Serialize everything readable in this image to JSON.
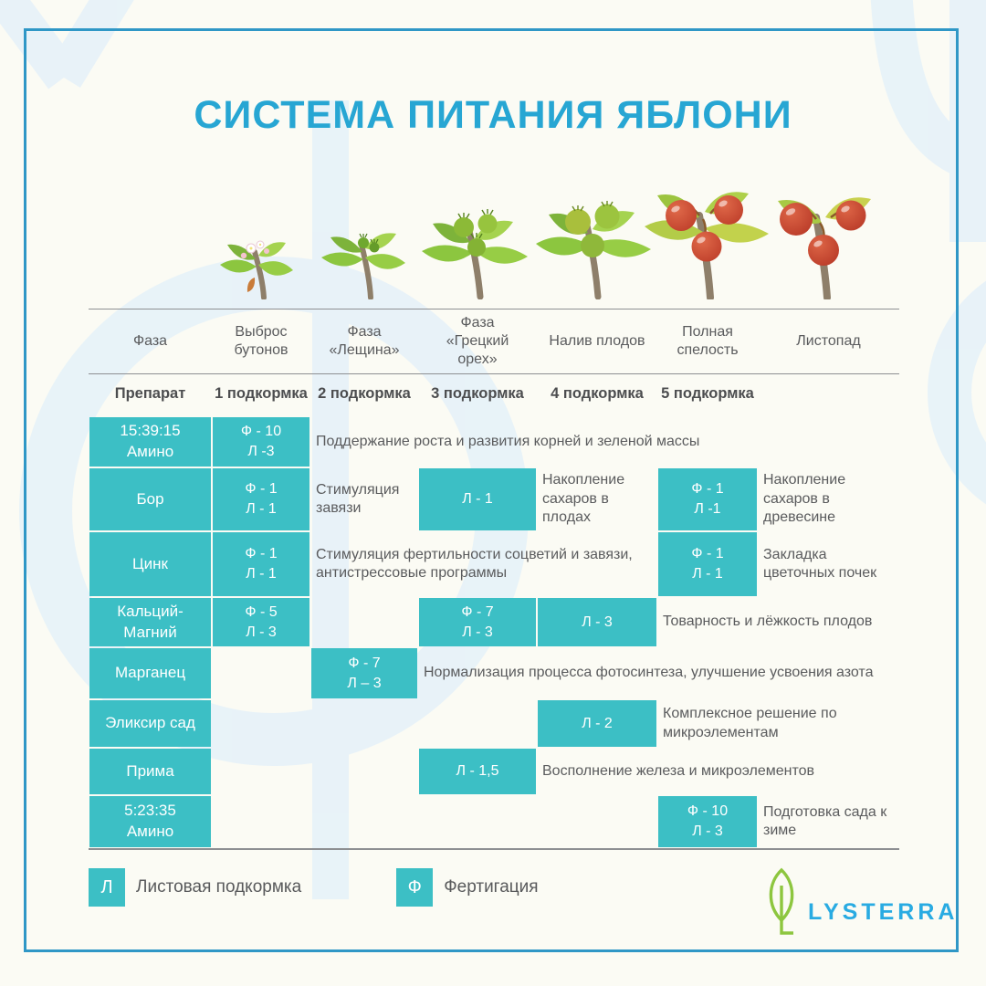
{
  "title": "СИСТЕМА ПИТАНИЯ ЯБЛОНИ",
  "colors": {
    "accent_teal": "#3cbfc5",
    "title_blue": "#27a6d3",
    "frame_blue": "#2f97c6",
    "text_gray": "#5a5b5d",
    "logo_green": "#8dc63f",
    "logo_blue": "#29abe2"
  },
  "chart_data": {
    "type": "table",
    "title": "СИСТЕМА ПИТАНИЯ ЯБЛОНИ",
    "phase_col_label": "Фаза",
    "product_col_label": "Препарат",
    "phases": [
      "Выброс бутонов",
      "Фаза «Лещина»",
      "Фаза «Грецкий орех»",
      "Налив плодов",
      "Полная спелость",
      "Листопад"
    ],
    "feedings": [
      "1 подкормка",
      "2 подкормка",
      "3 подкормка",
      "4 подкормка",
      "5 подкормка"
    ],
    "stage_icons": [
      "apple-branch-bud-burst-icon",
      "apple-branch-hazelnut-stage-icon",
      "apple-branch-walnut-stage-icon",
      "apple-branch-fruit-filling-icon",
      "apple-branch-full-ripeness-icon",
      "apple-branch-leaf-fall-icon"
    ],
    "rows": [
      {
        "product_lines": [
          "15:39:15",
          "Амино"
        ],
        "cells": [
          {
            "col": 1,
            "lines": [
              "Ф - 10",
              "Л -3"
            ]
          }
        ],
        "notes": [
          {
            "col": 2,
            "span": 5,
            "text": "Поддержание роста и развития корней и зеленой массы"
          }
        ]
      },
      {
        "product_lines": [
          "Бор"
        ],
        "cells": [
          {
            "col": 1,
            "lines": [
              "Ф - 1",
              "Л - 1"
            ]
          },
          {
            "col": 3,
            "lines": [
              "Л - 1"
            ]
          },
          {
            "col": 5,
            "lines": [
              "Ф - 1",
              "Л -1"
            ]
          }
        ],
        "notes": [
          {
            "col": 2,
            "span": 1,
            "text": "Стимуляция завязи"
          },
          {
            "col": 4,
            "span": 1,
            "text": "Накопление сахаров в плодах"
          },
          {
            "col": 6,
            "span": 1,
            "text": "Накопление сахаров в древесине"
          }
        ]
      },
      {
        "product_lines": [
          "Цинк"
        ],
        "cells": [
          {
            "col": 1,
            "lines": [
              "Ф - 1",
              "Л - 1"
            ]
          },
          {
            "col": 5,
            "lines": [
              "Ф - 1",
              "Л - 1"
            ]
          }
        ],
        "notes": [
          {
            "col": 2,
            "span": 3,
            "text": "Стимуляция фертильности соцветий и завязи, антистрессовые программы"
          },
          {
            "col": 6,
            "span": 1,
            "text": "Закладка цветочных почек"
          }
        ]
      },
      {
        "product_lines": [
          "Кальций-",
          "Магний"
        ],
        "cells": [
          {
            "col": 1,
            "lines": [
              "Ф - 5",
              "Л - 3"
            ]
          },
          {
            "col": 3,
            "lines": [
              "Ф - 7",
              "Л - 3"
            ]
          },
          {
            "col": 4,
            "lines": [
              "Л - 3"
            ]
          }
        ],
        "notes": [
          {
            "col": 5,
            "span": 2,
            "text": "Товарность и лёжкость плодов"
          }
        ]
      },
      {
        "product_lines": [
          "Марганец"
        ],
        "cells": [
          {
            "col": 2,
            "lines": [
              "Ф - 7",
              "Л – 3"
            ]
          }
        ],
        "notes": [
          {
            "col": 3,
            "span": 4,
            "text": "Нормализация процесса фотосинтеза, улучшение усвоения азота"
          }
        ]
      },
      {
        "product_lines": [
          "Эликсир сад"
        ],
        "cells": [
          {
            "col": 4,
            "lines": [
              "Л - 2"
            ]
          }
        ],
        "notes": [
          {
            "col": 5,
            "span": 2,
            "text": "Комплексное решение по микроэлементам"
          }
        ]
      },
      {
        "product_lines": [
          "Прима"
        ],
        "cells": [
          {
            "col": 3,
            "lines": [
              "Л - 1,5"
            ]
          }
        ],
        "notes": [
          {
            "col": 4,
            "span": 3,
            "text": "Восполнение железа и микроэлементов"
          }
        ]
      },
      {
        "product_lines": [
          "5:23:35",
          "Амино"
        ],
        "cells": [
          {
            "col": 5,
            "lines": [
              "Ф - 10",
              "Л - 3"
            ]
          }
        ],
        "notes": [
          {
            "col": 6,
            "span": 1,
            "text": "Подготовка сада к зиме"
          }
        ]
      }
    ]
  },
  "legend": [
    {
      "symbol": "Л",
      "label": "Листовая подкормка"
    },
    {
      "symbol": "Ф",
      "label": "Фертигация"
    }
  ],
  "logo": {
    "text": "LYSTERRA",
    "icon": "leaf-logo-icon"
  }
}
